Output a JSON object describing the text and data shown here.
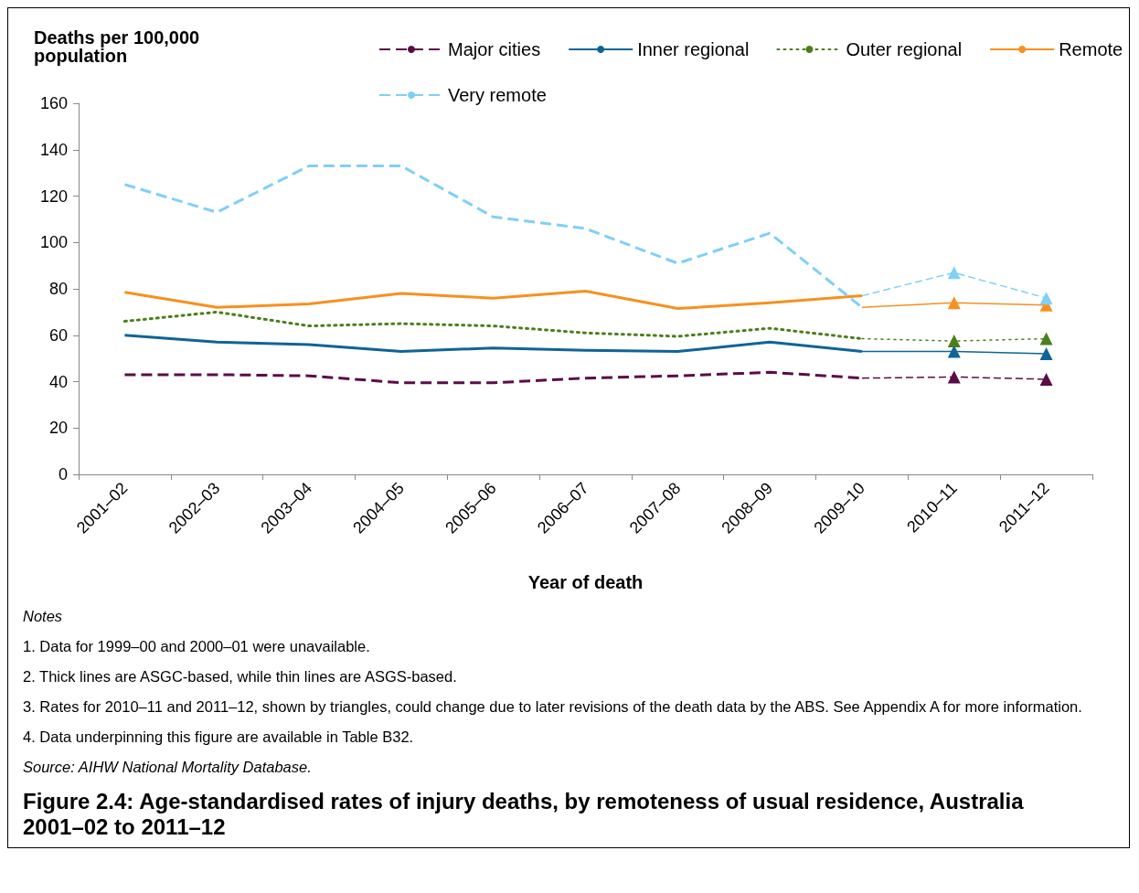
{
  "chart_data": {
    "type": "line",
    "title": "Figure 2.4: Age-standardised rates of injury deaths, by remoteness of usual residence, Australia 2001–02 to 2011–12",
    "xlabel": "Year of death",
    "ylabel": "Deaths per 100,000 population",
    "categories": [
      "2001–02",
      "2002–03",
      "2003–04",
      "2004–05",
      "2005–06",
      "2006–07",
      "2007–08",
      "2008–09",
      "2009–10",
      "2010–11",
      "2011–12"
    ],
    "series": [
      {
        "name": "Major cities",
        "color": "#5c0b47",
        "line_style": "dashed",
        "values": [
          43,
          43,
          42.5,
          39.5,
          39.5,
          41.5,
          42.5,
          44,
          41.5,
          null,
          null
        ]
      },
      {
        "name": "Inner regional",
        "color": "#0f6496",
        "line_style": "solid",
        "values": [
          60,
          57,
          56,
          53,
          54.5,
          53.5,
          53,
          57,
          53,
          null,
          null
        ]
      },
      {
        "name": "Outer regional",
        "color": "#4a7f19",
        "line_style": "dotted",
        "values": [
          66,
          70,
          64,
          65,
          64,
          61,
          59.5,
          63,
          58.5,
          null,
          null
        ]
      },
      {
        "name": "Remote",
        "color": "#f7901e",
        "line_style": "solid",
        "values": [
          78.5,
          72,
          73.5,
          78,
          76,
          79,
          71.5,
          74,
          77,
          null,
          null
        ]
      },
      {
        "name": "Very remote",
        "color": "#7fd0f6",
        "line_style": "dashed",
        "values": [
          125,
          113,
          133,
          133,
          111,
          106,
          91,
          104,
          72,
          null,
          null
        ]
      },
      {
        "color": "#5c0b47",
        "line_style": "dashed",
        "marker": "triangle",
        "values": [
          null,
          null,
          null,
          null,
          null,
          null,
          null,
          null,
          41.5,
          42,
          41
        ]
      },
      {
        "color": "#0f6496",
        "line_style": "solid",
        "marker": "triangle",
        "values": [
          null,
          null,
          null,
          null,
          null,
          null,
          null,
          null,
          53,
          53,
          52
        ]
      },
      {
        "color": "#4a7f19",
        "line_style": "dotted",
        "marker": "triangle",
        "values": [
          null,
          null,
          null,
          null,
          null,
          null,
          null,
          null,
          58.5,
          57.5,
          58.5
        ]
      },
      {
        "color": "#f7901e",
        "line_style": "solid",
        "marker": "triangle",
        "values": [
          null,
          null,
          null,
          null,
          null,
          null,
          null,
          null,
          72,
          74,
          73
        ]
      },
      {
        "color": "#7fd0f6",
        "line_style": "dashed",
        "marker": "triangle",
        "values": [
          null,
          null,
          null,
          null,
          null,
          null,
          null,
          null,
          77,
          87,
          76
        ]
      }
    ],
    "ylim": [
      0,
      160
    ],
    "yticks": [
      0,
      20,
      40,
      60,
      80,
      100,
      120,
      140,
      160
    ],
    "grid": false,
    "legend": "top",
    "annotations": [
      "Notes",
      "1. Data for 1999–00 and 2000–01 were unavailable.",
      "2. Thick lines are ASGC-based, while thin lines are ASGS-based.",
      "3. Rates for 2010–11 and 2011–12, shown by triangles, could change due to later revisions of the death data by the ABS. See Appendix A for more information.",
      "4. Data underpinning this figure are available in Table B32.",
      "Source: AIHW National Mortality Database."
    ]
  }
}
